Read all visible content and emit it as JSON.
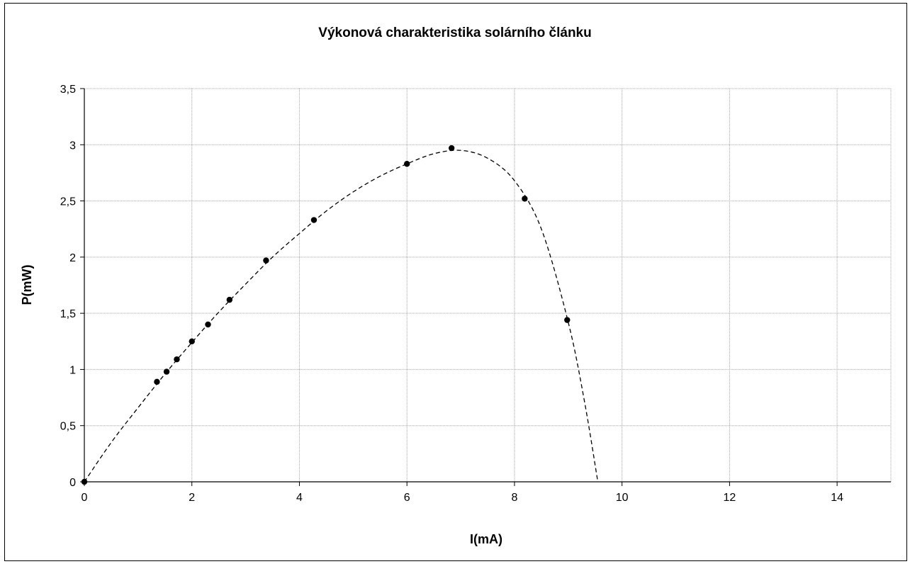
{
  "chart_data": {
    "type": "scatter",
    "title": "Výkonová charakteristika solárního článku",
    "xlabel": "I(mA)",
    "ylabel": "P(mW)",
    "xlim": [
      0,
      15
    ],
    "ylim": [
      0,
      3.5
    ],
    "x_ticks": [
      0,
      2,
      4,
      6,
      8,
      10,
      12,
      14
    ],
    "x_tick_labels": [
      "0",
      "2",
      "4",
      "6",
      "8",
      "10",
      "12",
      "14"
    ],
    "y_ticks": [
      0,
      0.5,
      1,
      1.5,
      2,
      2.5,
      3,
      3.5
    ],
    "y_tick_labels": [
      "0",
      "0,5",
      "1",
      "1,5",
      "2",
      "2,5",
      "3",
      "3,5"
    ],
    "grid": true,
    "series": [
      {
        "marker": "circle",
        "color": "#000000",
        "points": [
          {
            "x": 0,
            "y": 0
          },
          {
            "x": 1.35,
            "y": 0.89
          },
          {
            "x": 1.53,
            "y": 0.98
          },
          {
            "x": 1.72,
            "y": 1.09
          },
          {
            "x": 2.0,
            "y": 1.25
          },
          {
            "x": 2.3,
            "y": 1.4
          },
          {
            "x": 2.7,
            "y": 1.62
          },
          {
            "x": 3.38,
            "y": 1.97
          },
          {
            "x": 4.27,
            "y": 2.33
          },
          {
            "x": 6.0,
            "y": 2.83
          },
          {
            "x": 6.83,
            "y": 2.97
          },
          {
            "x": 8.19,
            "y": 2.52
          },
          {
            "x": 8.98,
            "y": 1.44
          }
        ]
      }
    ],
    "trendline": {
      "style": "dashed",
      "color": "#000000",
      "points": [
        {
          "x": 0,
          "y": 0
        },
        {
          "x": 0.5,
          "y": 0.35
        },
        {
          "x": 1.0,
          "y": 0.66
        },
        {
          "x": 1.5,
          "y": 0.96
        },
        {
          "x": 2.0,
          "y": 1.24
        },
        {
          "x": 2.5,
          "y": 1.51
        },
        {
          "x": 3.0,
          "y": 1.76
        },
        {
          "x": 3.5,
          "y": 2.0
        },
        {
          "x": 4.0,
          "y": 2.21
        },
        {
          "x": 4.5,
          "y": 2.41
        },
        {
          "x": 5.0,
          "y": 2.58
        },
        {
          "x": 5.5,
          "y": 2.72
        },
        {
          "x": 6.0,
          "y": 2.83
        },
        {
          "x": 6.5,
          "y": 2.92
        },
        {
          "x": 7.0,
          "y": 2.95
        },
        {
          "x": 7.5,
          "y": 2.88
        },
        {
          "x": 8.0,
          "y": 2.68
        },
        {
          "x": 8.5,
          "y": 2.25
        },
        {
          "x": 9.0,
          "y": 1.42
        },
        {
          "x": 9.3,
          "y": 0.72
        },
        {
          "x": 9.55,
          "y": 0.0
        }
      ]
    }
  }
}
